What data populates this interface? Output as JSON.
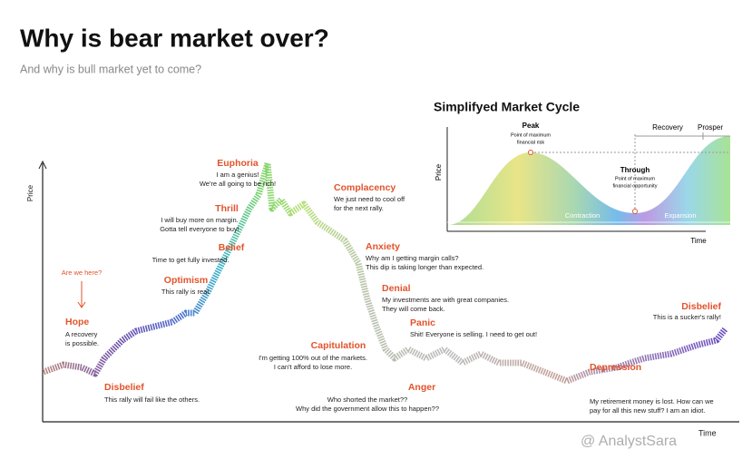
{
  "header": {
    "title": "Why is bear market over?",
    "subtitle": "And why is bull market yet to come?"
  },
  "main": {
    "annotation": "Are we here?",
    "y_axis": "Price",
    "x_axis": "Time",
    "phases": [
      {
        "label": "Hope",
        "caption": [
          "A recovery",
          "is possible."
        ]
      },
      {
        "label": "Disbelief",
        "caption": [
          "This rally will fail like the others."
        ]
      },
      {
        "label": "Optimism",
        "caption": [
          "This rally is real."
        ]
      },
      {
        "label": "Belief",
        "caption": [
          "Time to get fully invested."
        ]
      },
      {
        "label": "Thrill",
        "caption": [
          "I will buy more on margin.",
          "Gotta tell everyone to buy!"
        ]
      },
      {
        "label": "Euphoria",
        "caption": [
          "I am a genius!",
          "We're all going to be rich!"
        ]
      },
      {
        "label": "Complacency",
        "caption": [
          "We just need to cool off",
          "for the next rally."
        ]
      },
      {
        "label": "Anxiety",
        "caption": [
          "Why am I getting margin calls?",
          "This dip is taking longer than expected."
        ]
      },
      {
        "label": "Denial",
        "caption": [
          "My investments are with great companies.",
          "They will come back."
        ]
      },
      {
        "label": "Panic",
        "caption": [
          "Shit! Everyone is selling. I need to get out!"
        ]
      },
      {
        "label": "Capitulation",
        "caption": [
          "I'm getting 100% out of the markets.",
          "I can't afford to lose more."
        ]
      },
      {
        "label": "Anger",
        "caption": [
          "Who shorted the market??",
          "Why did the government allow this to happen??"
        ]
      },
      {
        "label": "Depression",
        "caption": [
          "My retirement money is lost. How can we",
          "pay for all this new stuff? I am an idiot."
        ]
      },
      {
        "label": "Disbelief",
        "caption": [
          "This is a sucker's rally!"
        ]
      }
    ]
  },
  "inset": {
    "title": "Simplifyed Market Cycle",
    "peak": {
      "label": "Peak",
      "caption": [
        "Point of maximum",
        "financial risk"
      ]
    },
    "through": {
      "label": "Through",
      "caption": [
        "Point of maximum",
        "financial opportunity"
      ]
    },
    "recovery": "Recovery",
    "prosper": "Prosper",
    "contraction": "Contraction",
    "expansion": "Expansion",
    "y_axis": "Price",
    "x_axis": "Time"
  },
  "watermark": "@ AnalystSara"
}
